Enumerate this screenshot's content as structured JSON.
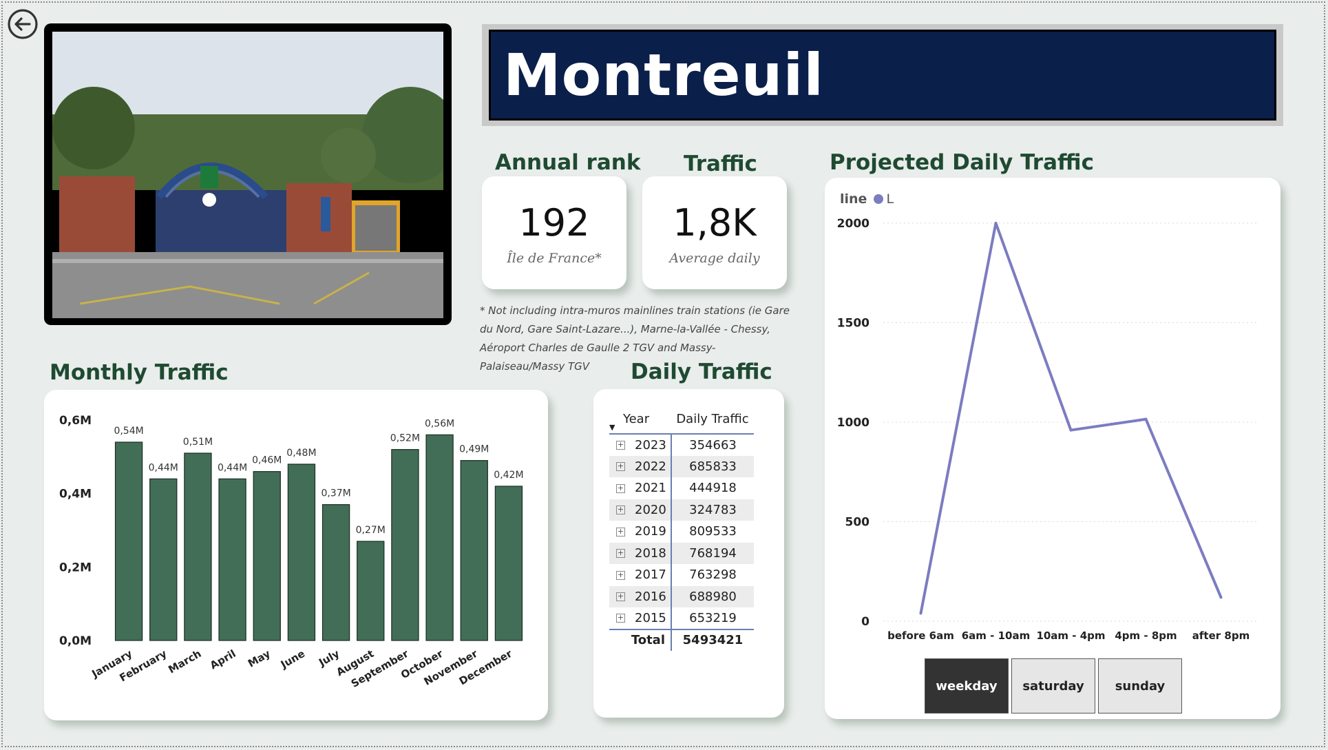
{
  "station": {
    "name": "Montreuil"
  },
  "annual_rank": {
    "title": "Annual rank",
    "value": "192",
    "subtitle": "Île de France*"
  },
  "traffic": {
    "title": "Traffic",
    "value": "1,8K",
    "subtitle": "Average daily"
  },
  "footnote": "* Not including intra-muros mainlines train stations (ie Gare du Nord, Gare Saint-Lazare...), Marne-la-Vallée - Chessy, Aéroport Charles de Gaulle 2 TGV and Massy-Palaiseau/Massy TGV",
  "monthly": {
    "title": "Monthly Traffic",
    "chart_data": {
      "type": "bar",
      "categories": [
        "January",
        "February",
        "March",
        "April",
        "May",
        "June",
        "July",
        "August",
        "September",
        "October",
        "November",
        "December"
      ],
      "values": [
        0.54,
        0.44,
        0.51,
        0.44,
        0.46,
        0.48,
        0.37,
        0.27,
        0.52,
        0.56,
        0.49,
        0.42
      ],
      "data_labels": [
        "0,54M",
        "0,44M",
        "0,51M",
        "0,44M",
        "0,46M",
        "0,48M",
        "0,37M",
        "0,27M",
        "0,52M",
        "0,56M",
        "0,49M",
        "0,42M"
      ],
      "y_ticks": [
        "0,0M",
        "0,2M",
        "0,4M",
        "0,6M"
      ],
      "ylim": [
        0,
        0.6
      ],
      "bar_color": "#426e58"
    }
  },
  "daily": {
    "title": "Daily Traffic",
    "col_year": "Year",
    "col_traffic": "Daily Traffic",
    "rows": [
      {
        "year": "2023",
        "value": "354663"
      },
      {
        "year": "2022",
        "value": "685833"
      },
      {
        "year": "2021",
        "value": "444918"
      },
      {
        "year": "2020",
        "value": "324783"
      },
      {
        "year": "2019",
        "value": "809533"
      },
      {
        "year": "2018",
        "value": "768194"
      },
      {
        "year": "2017",
        "value": "763298"
      },
      {
        "year": "2016",
        "value": "688980"
      },
      {
        "year": "2015",
        "value": "653219"
      }
    ],
    "total_label": "Total",
    "total_value": "5493421"
  },
  "projected": {
    "title": "Projected Daily Traffic",
    "legend_title": "line",
    "legend_item": "L",
    "chart_data": {
      "type": "line",
      "categories": [
        "before 6am",
        "6am - 10am",
        "10am - 4pm",
        "4pm - 8pm",
        "after 8pm"
      ],
      "series": [
        {
          "name": "L",
          "values": [
            40,
            2000,
            960,
            1015,
            120
          ]
        }
      ],
      "y_ticks": [
        0,
        500,
        1000,
        1500,
        2000
      ],
      "ylim": [
        0,
        2000
      ],
      "line_color": "#7c7cc1"
    },
    "toggles": [
      {
        "label": "weekday",
        "active": true
      },
      {
        "label": "saturday",
        "active": false
      },
      {
        "label": "sunday",
        "active": false
      }
    ]
  }
}
